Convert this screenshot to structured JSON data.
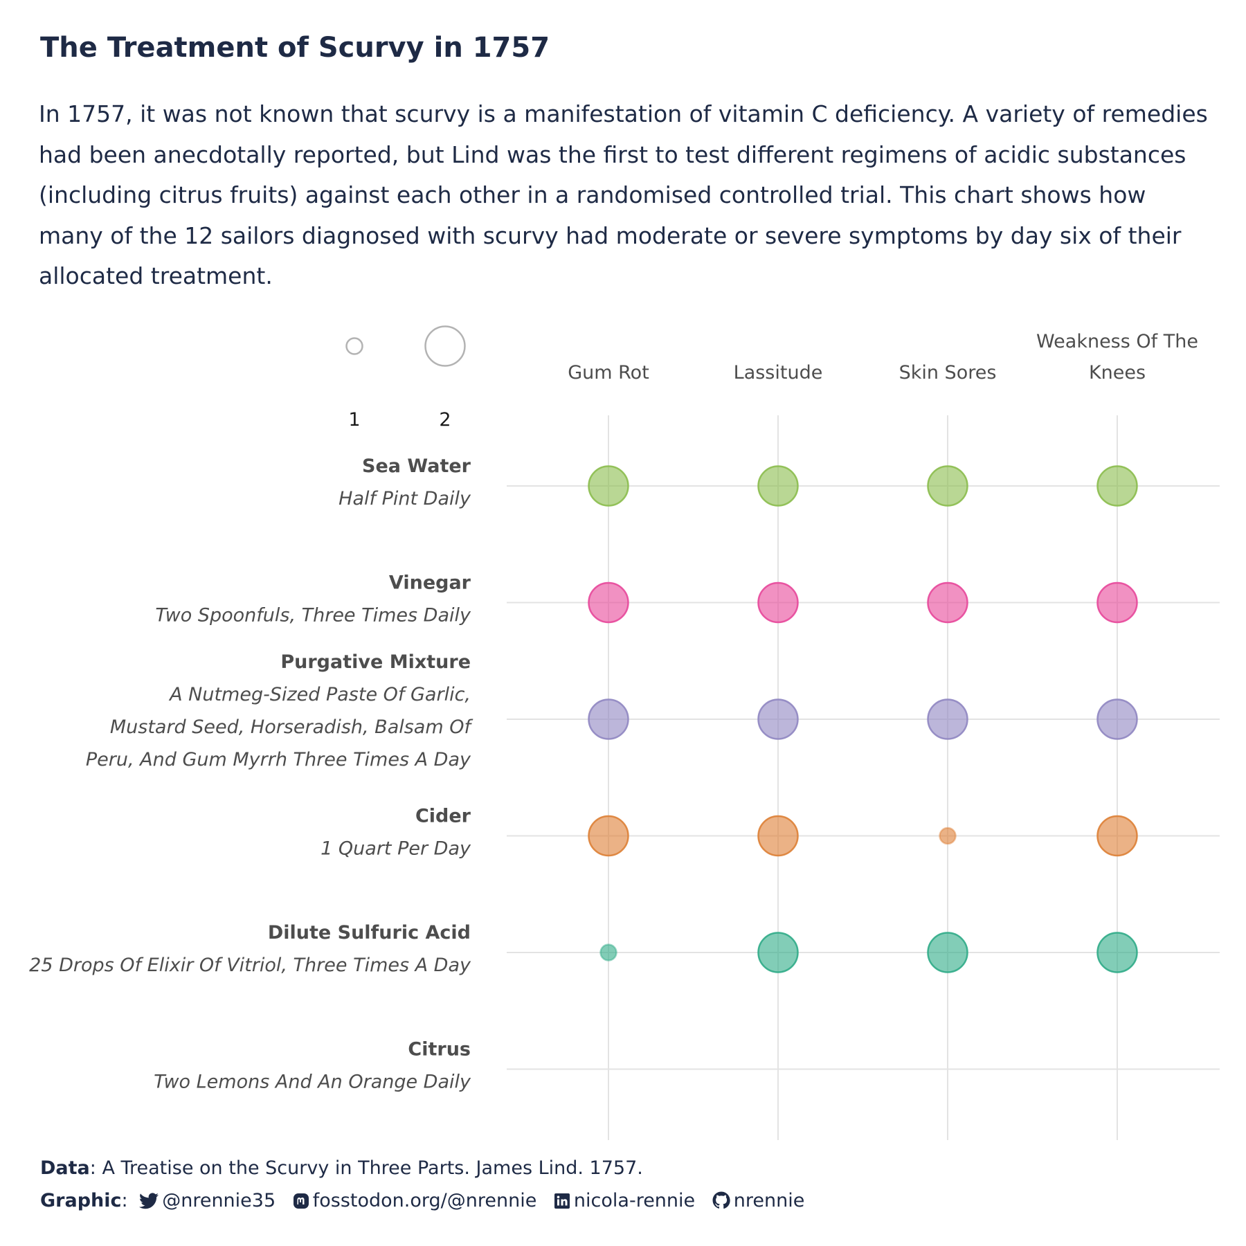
{
  "header": {
    "title": "The Treatment of Scurvy in 1757",
    "subtitle": "In 1757, it was not known that scurvy is a manifestation of vitamin C deficiency. A variety of remedies had been anecdotally reported, but Lind was the first to test different regimens of acidic substances (including citrus fruits) against each other in a randomised controlled trial. This chart shows how many of the 12 sailors diagnosed with scurvy had moderate or severe symptoms by day six of their allocated treatment."
  },
  "chart_data": {
    "type": "scatter",
    "size_legend": {
      "values": [
        1,
        2
      ],
      "labels": [
        "1",
        "2"
      ]
    },
    "symptoms": [
      "Gum Rot",
      "Lassitude",
      "Skin Sores",
      "Weakness Of The Knees"
    ],
    "treatments": [
      {
        "name": "Sea Water",
        "dose": "Half Pint Daily",
        "color": "#8bbd4d",
        "counts": [
          2,
          2,
          2,
          2
        ]
      },
      {
        "name": "Vinegar",
        "dose": "Two Spoonfuls, Three Times Daily",
        "color": "#e7479a",
        "counts": [
          2,
          2,
          2,
          2
        ]
      },
      {
        "name": "Purgative Mixture",
        "dose": "A Nutmeg-Sized Paste Of Garlic, Mustard Seed, Horseradish, Balsam Of Peru, And Gum Myrrh Three Times A Day",
        "color": "#8f86c1",
        "counts": [
          2,
          2,
          2,
          2
        ]
      },
      {
        "name": "Cider",
        "dose": "1 Quart Per Day",
        "color": "#dd7f35",
        "counts": [
          2,
          2,
          1,
          2
        ]
      },
      {
        "name": "Dilute Sulfuric Acid",
        "dose": "25 Drops Of Elixir Of Vitriol, Three Times A Day",
        "color": "#2fab87",
        "counts": [
          1,
          2,
          2,
          2
        ]
      },
      {
        "name": "Citrus",
        "dose": "Two Lemons And An Orange Daily",
        "color": "#666666",
        "counts": [
          0,
          0,
          0,
          0
        ]
      }
    ],
    "grid": true
  },
  "caption": {
    "data_label": "Data",
    "data_text": ": A Treatise on the Scurvy in Three Parts. James Lind. 1757.",
    "graphic_label": "Graphic",
    "graphic_sep": ":",
    "twitter": "@nrennie35",
    "mastodon": "fosstodon.org/@nrennie",
    "linkedin": "nicola-rennie",
    "github": "nrennie"
  }
}
